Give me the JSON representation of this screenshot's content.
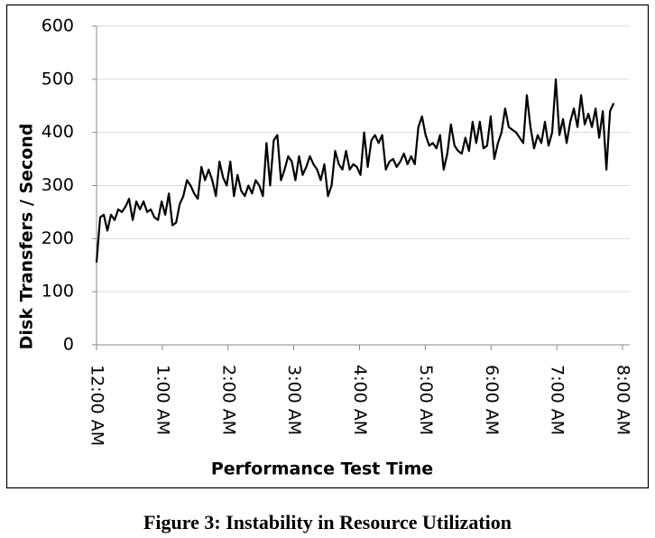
{
  "chart_data": {
    "type": "line",
    "y_label": "Disk Transfers / Second",
    "x_label": "Performance Test Time",
    "caption": "Figure 3: Instability in Resource Utilization",
    "xlim": [
      0,
      8
    ],
    "xticks": [
      {
        "value": 0,
        "label": "12:00 AM"
      },
      {
        "value": 1,
        "label": "1:00 AM"
      },
      {
        "value": 2,
        "label": "2:00 AM"
      },
      {
        "value": 3,
        "label": "3:00 AM"
      },
      {
        "value": 4,
        "label": "4:00 AM"
      },
      {
        "value": 5,
        "label": "5:00 AM"
      },
      {
        "value": 6,
        "label": "6:00 AM"
      },
      {
        "value": 7,
        "label": "7:00 AM"
      },
      {
        "value": 8,
        "label": "8:00 AM"
      }
    ],
    "ylim": [
      0,
      600
    ],
    "yticks": [
      0,
      100,
      200,
      300,
      400,
      500,
      600
    ],
    "grid": true,
    "color": "#000000",
    "x": [
      0,
      0.055,
      0.11,
      0.165,
      0.22,
      0.275,
      0.33,
      0.385,
      0.44,
      0.495,
      0.55,
      0.605,
      0.66,
      0.715,
      0.77,
      0.825,
      0.88,
      0.935,
      0.99,
      1.045,
      1.1,
      1.155,
      1.21,
      1.265,
      1.32,
      1.375,
      1.43,
      1.485,
      1.54,
      1.595,
      1.65,
      1.705,
      1.76,
      1.815,
      1.87,
      1.925,
      1.98,
      2.035,
      2.09,
      2.145,
      2.2,
      2.255,
      2.31,
      2.365,
      2.42,
      2.475,
      2.53,
      2.585,
      2.64,
      2.695,
      2.75,
      2.805,
      2.86,
      2.915,
      2.97,
      3.025,
      3.08,
      3.135,
      3.19,
      3.245,
      3.3,
      3.355,
      3.41,
      3.465,
      3.52,
      3.575,
      3.63,
      3.685,
      3.74,
      3.795,
      3.85,
      3.905,
      3.96,
      4.015,
      4.07,
      4.125,
      4.18,
      4.235,
      4.29,
      4.345,
      4.4,
      4.455,
      4.51,
      4.565,
      4.62,
      4.675,
      4.73,
      4.785,
      4.84,
      4.895,
      4.95,
      5.005,
      5.06,
      5.115,
      5.17,
      5.225,
      5.28,
      5.335,
      5.39,
      5.445,
      5.5,
      5.555,
      5.61,
      5.665,
      5.72,
      5.775,
      5.83,
      5.885,
      5.94,
      5.995,
      6.05,
      6.105,
      6.16,
      6.215,
      6.27,
      6.325,
      6.38,
      6.435,
      6.49,
      6.545,
      6.6,
      6.655,
      6.71,
      6.765,
      6.82,
      6.875,
      6.93,
      6.985,
      7.04,
      7.095,
      7.15,
      7.205,
      7.26,
      7.315,
      7.37,
      7.425,
      7.48,
      7.535,
      7.59,
      7.645,
      7.7,
      7.755,
      7.81,
      7.865
    ],
    "values": [
      155,
      240,
      245,
      215,
      245,
      235,
      255,
      250,
      260,
      275,
      235,
      270,
      255,
      270,
      250,
      255,
      240,
      235,
      270,
      245,
      285,
      225,
      230,
      265,
      280,
      310,
      300,
      285,
      275,
      335,
      310,
      330,
      310,
      280,
      345,
      315,
      300,
      345,
      280,
      320,
      290,
      280,
      300,
      285,
      310,
      300,
      280,
      380,
      300,
      385,
      395,
      310,
      330,
      355,
      345,
      310,
      355,
      320,
      335,
      355,
      340,
      330,
      310,
      340,
      280,
      300,
      365,
      340,
      330,
      365,
      330,
      340,
      335,
      320,
      400,
      335,
      385,
      395,
      380,
      395,
      330,
      345,
      350,
      335,
      345,
      360,
      340,
      355,
      340,
      410,
      430,
      395,
      375,
      380,
      370,
      395,
      330,
      360,
      415,
      375,
      365,
      360,
      390,
      365,
      420,
      380,
      420,
      370,
      375,
      430,
      350,
      380,
      400,
      445,
      410,
      405,
      400,
      390,
      380,
      470,
      410,
      370,
      395,
      380,
      420,
      375,
      400,
      500,
      395,
      425,
      380,
      420,
      445,
      410,
      470,
      415,
      435,
      410,
      445,
      390,
      440,
      330,
      440,
      455
    ]
  }
}
